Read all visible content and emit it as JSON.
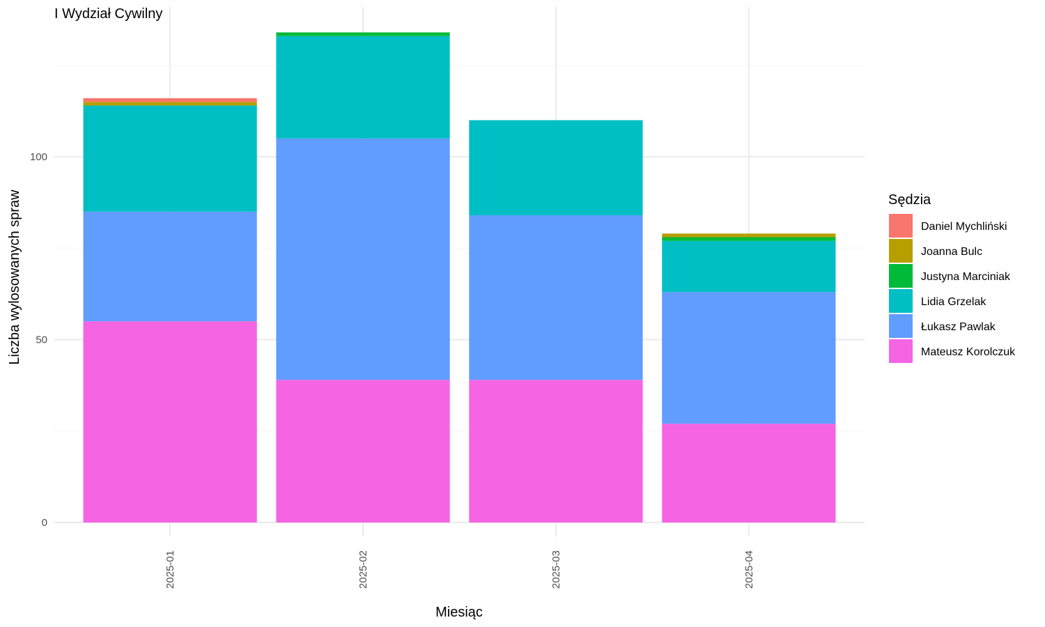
{
  "chart_data": {
    "type": "bar",
    "stacked": true,
    "title": "I Wydział Cywilny",
    "xlabel": "Miesiąc",
    "ylabel": "Liczba wylosowanych spraw",
    "categories": [
      "2025-01",
      "2025-02",
      "2025-03",
      "2025-04"
    ],
    "ylim": [
      0,
      140
    ],
    "yticks": [
      0,
      50,
      100
    ],
    "grid": true,
    "legend": {
      "title": "Sędzia",
      "placement": "right"
    },
    "series": [
      {
        "name": "Mateusz Korolczuk",
        "color": "#F564E3",
        "values": [
          55,
          39,
          39,
          27
        ]
      },
      {
        "name": "Łukasz Pawlak",
        "color": "#619CFF",
        "values": [
          30,
          66,
          45,
          36
        ]
      },
      {
        "name": "Lidia Grzelak",
        "color": "#00BFC4",
        "values": [
          29,
          28,
          26,
          14
        ]
      },
      {
        "name": "Justyna Marciniak",
        "color": "#00BA38",
        "values": [
          0,
          1,
          0,
          1
        ]
      },
      {
        "name": "Joanna Bulc",
        "color": "#B79F00",
        "values": [
          1,
          0,
          0,
          1
        ]
      },
      {
        "name": "Daniel Mychliński",
        "color": "#F8766D",
        "values": [
          1,
          0,
          0,
          0
        ]
      }
    ],
    "legend_order": [
      "Daniel Mychliński",
      "Joanna Bulc",
      "Justyna Marciniak",
      "Lidia Grzelak",
      "Łukasz Pawlak",
      "Mateusz Korolczuk"
    ]
  }
}
